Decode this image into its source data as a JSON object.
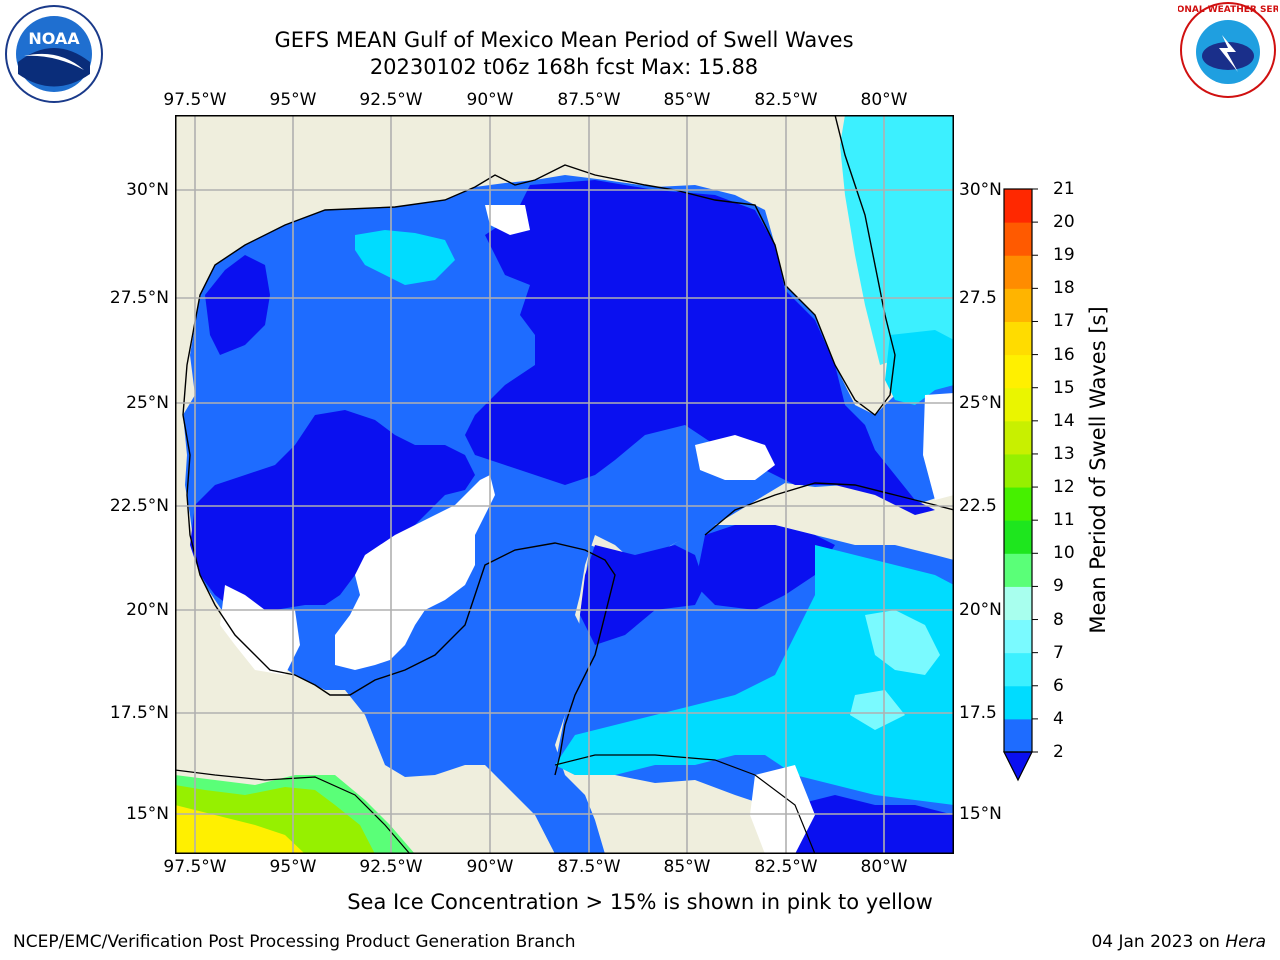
{
  "title_line1": "GEFS MEAN Gulf of Mexico Mean Period of Swell Waves",
  "title_line2": "20230102 t06z 168h fcst   Max: 15.88",
  "lon_ticks": [
    "97.5°W",
    "95°W",
    "92.5°W",
    "90°W",
    "87.5°W",
    "85°W",
    "82.5°W",
    "80°W"
  ],
  "lat_ticks_left": [
    "30°N",
    "27.5°N",
    "25°N",
    "22.5°N",
    "20°N",
    "17.5°N",
    "15°N"
  ],
  "lat_ticks_right": [
    "30°N",
    "27.5",
    "25°N",
    "22.5",
    "20°N",
    "17.5",
    "15°N"
  ],
  "colorbar": {
    "label": "Mean Period of Swell Waves [s]",
    "ticks": [
      "2",
      "4",
      "6",
      "7",
      "8",
      "9",
      "10",
      "11",
      "12",
      "13",
      "14",
      "15",
      "16",
      "17",
      "18",
      "19",
      "20",
      "21"
    ],
    "colors": [
      "#1e6cff",
      "#00dcff",
      "#3cf0ff",
      "#7afaff",
      "#a8ffee",
      "#5aff78",
      "#1ee61e",
      "#46f000",
      "#96f000",
      "#c8f000",
      "#eaf500",
      "#fff000",
      "#ffdc00",
      "#ffb400",
      "#ff8c00",
      "#ff5a00",
      "#ff2800"
    ],
    "under_color": "#0a10f0"
  },
  "note": "Sea Ice Concentration > 15% is shown in pink to yellow",
  "footer_left": "NCEP/EMC/Verification Post Processing Product Generation Branch",
  "footer_date": "04 Jan 2023 on",
  "footer_host": "Hera",
  "logos": {
    "left": "NOAA",
    "right_text": "NATIONAL WEATHER SERVICE"
  },
  "colors": {
    "land": "#efeedd",
    "grid": "#b0b0b0"
  }
}
